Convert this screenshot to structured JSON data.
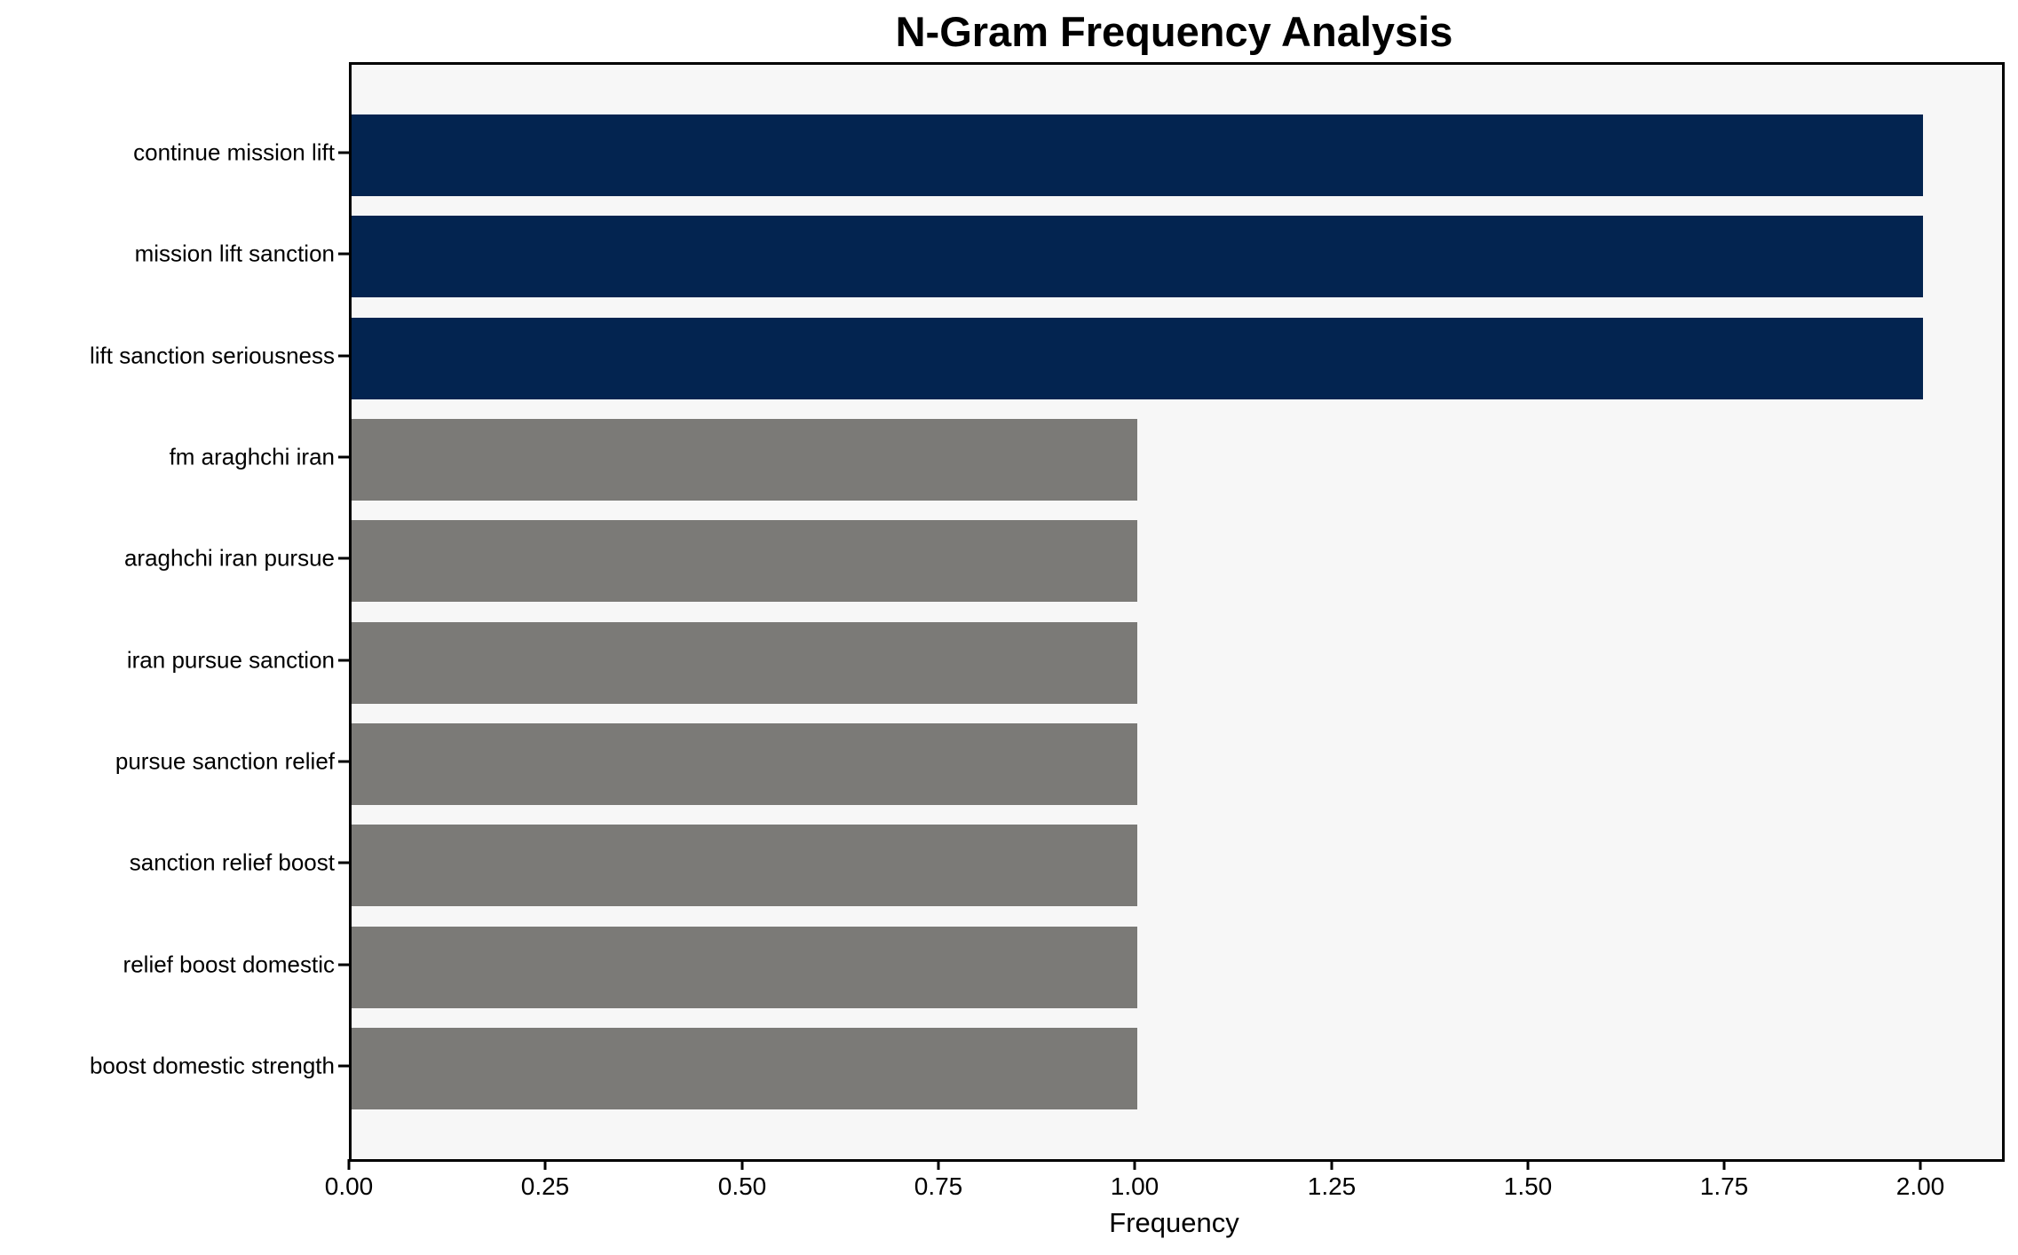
{
  "figure": {
    "background": "#ffffff",
    "plot_background": "#f7f7f7",
    "spine_color": "#000000",
    "text_color": "#000000"
  },
  "chart_data": {
    "type": "bar",
    "orientation": "horizontal",
    "title": "N-Gram Frequency Analysis",
    "xlabel": "Frequency",
    "ylabel": "",
    "categories": [
      "continue mission lift",
      "mission lift sanction",
      "lift sanction seriousness",
      "fm araghchi iran",
      "araghchi iran pursue",
      "iran pursue sanction",
      "pursue sanction relief",
      "sanction relief boost",
      "relief boost domestic",
      "boost domestic strength"
    ],
    "values": [
      2,
      2,
      2,
      1,
      1,
      1,
      1,
      1,
      1,
      1
    ],
    "bar_colors": [
      "#032450",
      "#032450",
      "#032450",
      "#7b7a77",
      "#7b7a77",
      "#7b7a77",
      "#7b7a77",
      "#7b7a77",
      "#7b7a77",
      "#7b7a77"
    ],
    "highlight_color": "#032450",
    "default_color": "#7b7a77",
    "xlim": [
      0,
      2.1
    ],
    "x_tick_values": [
      0,
      0.25,
      0.5,
      0.75,
      1.0,
      1.25,
      1.5,
      1.75,
      2.0
    ],
    "x_tick_labels": [
      "0.00",
      "0.25",
      "0.50",
      "0.75",
      "1.00",
      "1.25",
      "1.50",
      "1.75",
      "2.00"
    ],
    "grid": false,
    "legend_position": "none"
  }
}
